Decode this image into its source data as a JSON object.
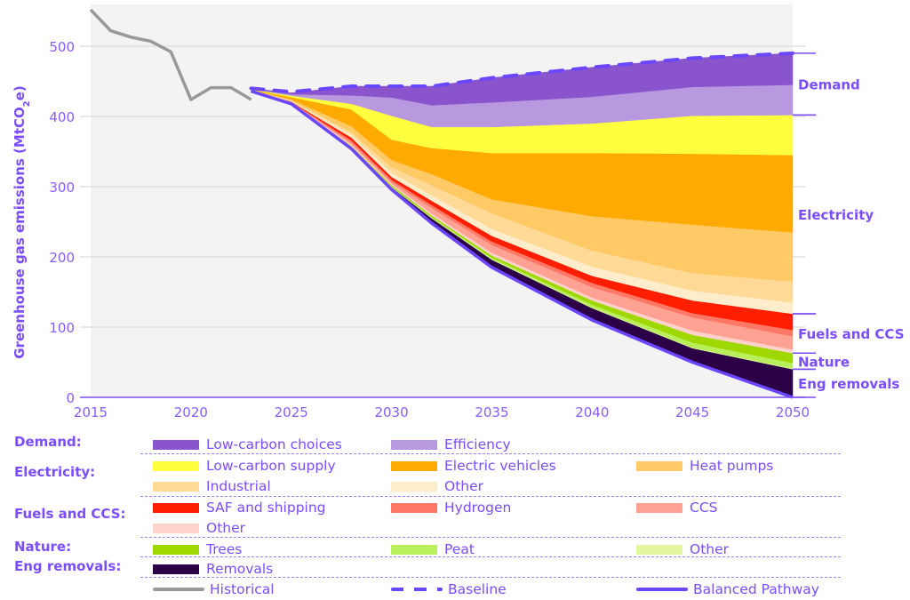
{
  "chart_data": {
    "type": "area",
    "title": "",
    "ylabel": "Greenhouse gas emissions (MtCO2e)",
    "ylabel_parts": {
      "pre": "Greenhouse gas emissions (MtCO",
      "sub": "2",
      "post": "e)"
    },
    "xlabel": "",
    "xlim": [
      2015,
      2050
    ],
    "ylim": [
      0,
      550
    ],
    "x_ticks": [
      "2015",
      "2020",
      "2025",
      "2030",
      "2035",
      "2040",
      "2045",
      "2050"
    ],
    "x_tick_values": [
      2015,
      2020,
      2025,
      2030,
      2035,
      2040,
      2045,
      2050
    ],
    "y_ticks": [
      "0",
      "100",
      "200",
      "300",
      "400",
      "500"
    ],
    "y_tick_values": [
      0,
      100,
      200,
      300,
      400,
      500
    ],
    "grid": true,
    "x": [
      2023,
      2025,
      2028,
      2030,
      2032,
      2035,
      2040,
      2045,
      2050
    ],
    "balanced_pathway": {
      "name": "Balanced Pathway",
      "color": "#6b46ff",
      "values": [
        436,
        418,
        354,
        296,
        248,
        185,
        110,
        50,
        0
      ]
    },
    "baseline": {
      "name": "Baseline",
      "color": "#6b46ff",
      "values": [
        440,
        435,
        443,
        443,
        443,
        455,
        470,
        483,
        490
      ]
    },
    "historical": {
      "name": "Historical",
      "color": "#999999",
      "x": [
        2015,
        2016,
        2017,
        2018,
        2019,
        2020,
        2021,
        2022,
        2023
      ],
      "values": [
        552,
        522,
        513,
        507,
        492,
        424,
        441,
        441,
        424
      ]
    },
    "stack_note": "Bands stacked upward from the Balanced Pathway line to the Baseline; values are band thicknesses (MtCO2e) at each x.",
    "series": [
      {
        "name": "Removals",
        "group": "Eng removals",
        "color": "#2b0046",
        "values": [
          0.3,
          0.5,
          2,
          3,
          7,
          11,
          17,
          20,
          40
        ]
      },
      {
        "name": "Other (Nature)",
        "group": "Nature",
        "color": "#e2f7a0",
        "values": [
          0.1,
          0.2,
          1,
          1,
          1,
          1,
          1,
          1,
          1
        ]
      },
      {
        "name": "Peat",
        "group": "Nature",
        "color": "#b8ef5a",
        "values": [
          0.1,
          0.2,
          0,
          0,
          1,
          2,
          4,
          7,
          8
        ]
      },
      {
        "name": "Trees",
        "group": "Nature",
        "color": "#9fd800",
        "values": [
          0.1,
          0.2,
          1,
          2,
          2,
          3,
          6,
          11,
          14
        ]
      },
      {
        "name": "Other (Fuels and CCS)",
        "group": "Fuels and CCS",
        "color": "#ffd2cc",
        "values": [
          0.1,
          0.5,
          2,
          2,
          3,
          4,
          4,
          6,
          5
        ]
      },
      {
        "name": "CCS",
        "group": "Fuels and CCS",
        "color": "#ffa294",
        "values": [
          0.1,
          0.5,
          3,
          3,
          8,
          11,
          15,
          19,
          19
        ]
      },
      {
        "name": "Hydrogen",
        "group": "Fuels and CCS",
        "color": "#ff7866",
        "values": [
          0.1,
          0.5,
          3,
          3,
          4,
          5,
          6,
          6,
          9
        ]
      },
      {
        "name": "SAF and shipping",
        "group": "Fuels and CCS",
        "color": "#ff1e00",
        "values": [
          0.2,
          0.5,
          4,
          4,
          6,
          8,
          10,
          18,
          23
        ]
      },
      {
        "name": "Other (Electricity)",
        "group": "Electricity",
        "color": "#ffeccb",
        "values": [
          0.2,
          0.5,
          4,
          6,
          8,
          10,
          13,
          14,
          16
        ]
      },
      {
        "name": "Industrial",
        "group": "Electricity",
        "color": "#ffd996",
        "values": [
          0.2,
          1,
          4,
          8,
          14,
          22,
          23,
          25,
          30
        ]
      },
      {
        "name": "Heat pumps",
        "group": "Electricity",
        "color": "#ffc966",
        "values": [
          0.3,
          2,
          8,
          10,
          16,
          20,
          49,
          69,
          70
        ]
      },
      {
        "name": "Electric vehicles",
        "group": "Electricity",
        "color": "#ffaa00",
        "values": [
          0.5,
          3,
          24,
          29,
          37,
          66,
          90,
          101,
          110
        ]
      },
      {
        "name": "Low-carbon supply",
        "group": "Electricity",
        "color": "#ffff40",
        "values": [
          0.5,
          2,
          8,
          34,
          30,
          37,
          42,
          54,
          57
        ]
      },
      {
        "name": "Efficiency",
        "group": "Demand",
        "color": "#b899e0",
        "values": [
          0.5,
          2,
          12,
          26,
          31,
          35,
          38,
          41,
          43
        ]
      },
      {
        "name": "Low-carbon choices",
        "group": "Demand",
        "color": "#8a55cc",
        "values": [
          0.7,
          2,
          13,
          16,
          27,
          35,
          42,
          41,
          45
        ]
      }
    ],
    "right_annotations": [
      {
        "label": "Demand",
        "range": [
          402,
          490
        ]
      },
      {
        "label": "Electricity",
        "range": [
          119,
          402
        ]
      },
      {
        "label": "Fuels and CCS",
        "range": [
          63,
          119
        ]
      },
      {
        "label": "Nature",
        "range": [
          40,
          63
        ]
      },
      {
        "label": "Eng removals",
        "range": [
          0,
          40
        ]
      }
    ],
    "legend": {
      "placement": "bottom",
      "groups": [
        {
          "label": "Demand:",
          "items": [
            {
              "label": "Low-carbon choices",
              "color": "#8a55cc",
              "kind": "swatch"
            },
            {
              "label": "Efficiency",
              "color": "#b899e0",
              "kind": "swatch"
            }
          ]
        },
        {
          "label": "Electricity:",
          "items": [
            {
              "label": "Low-carbon supply",
              "color": "#ffff40",
              "kind": "swatch"
            },
            {
              "label": "Electric vehicles",
              "color": "#ffaa00",
              "kind": "swatch"
            },
            {
              "label": "Heat pumps",
              "color": "#ffc966",
              "kind": "swatch"
            },
            {
              "label": "Industrial",
              "color": "#ffd996",
              "kind": "swatch"
            },
            {
              "label": "Other",
              "color": "#ffeccb",
              "kind": "swatch"
            }
          ]
        },
        {
          "label": "Fuels and CCS:",
          "items": [
            {
              "label": "SAF and shipping",
              "color": "#ff1e00",
              "kind": "swatch"
            },
            {
              "label": "Hydrogen",
              "color": "#ff7866",
              "kind": "swatch"
            },
            {
              "label": "CCS",
              "color": "#ffa294",
              "kind": "swatch"
            },
            {
              "label": "Other",
              "color": "#ffd2cc",
              "kind": "swatch"
            }
          ]
        },
        {
          "label": "Nature:",
          "items": [
            {
              "label": "Trees",
              "color": "#9fd800",
              "kind": "swatch"
            },
            {
              "label": "Peat",
              "color": "#b8ef5a",
              "kind": "swatch"
            },
            {
              "label": "Other",
              "color": "#e2f7a0",
              "kind": "swatch"
            }
          ]
        },
        {
          "label": "Eng removals:",
          "items": [
            {
              "label": "Removals",
              "color": "#2b0046",
              "kind": "swatch"
            }
          ]
        },
        {
          "label": "",
          "items": [
            {
              "label": "Historical",
              "color": "#999999",
              "kind": "line"
            },
            {
              "label": "Baseline",
              "color": "#6b46ff",
              "kind": "dash"
            },
            {
              "label": "Balanced Pathway",
              "color": "#6b46ff",
              "kind": "line"
            }
          ]
        }
      ]
    }
  },
  "colors": {
    "accent": "#7a4dff",
    "plot_background": "#f3f3f3",
    "gridline": "#e0e0e0"
  }
}
